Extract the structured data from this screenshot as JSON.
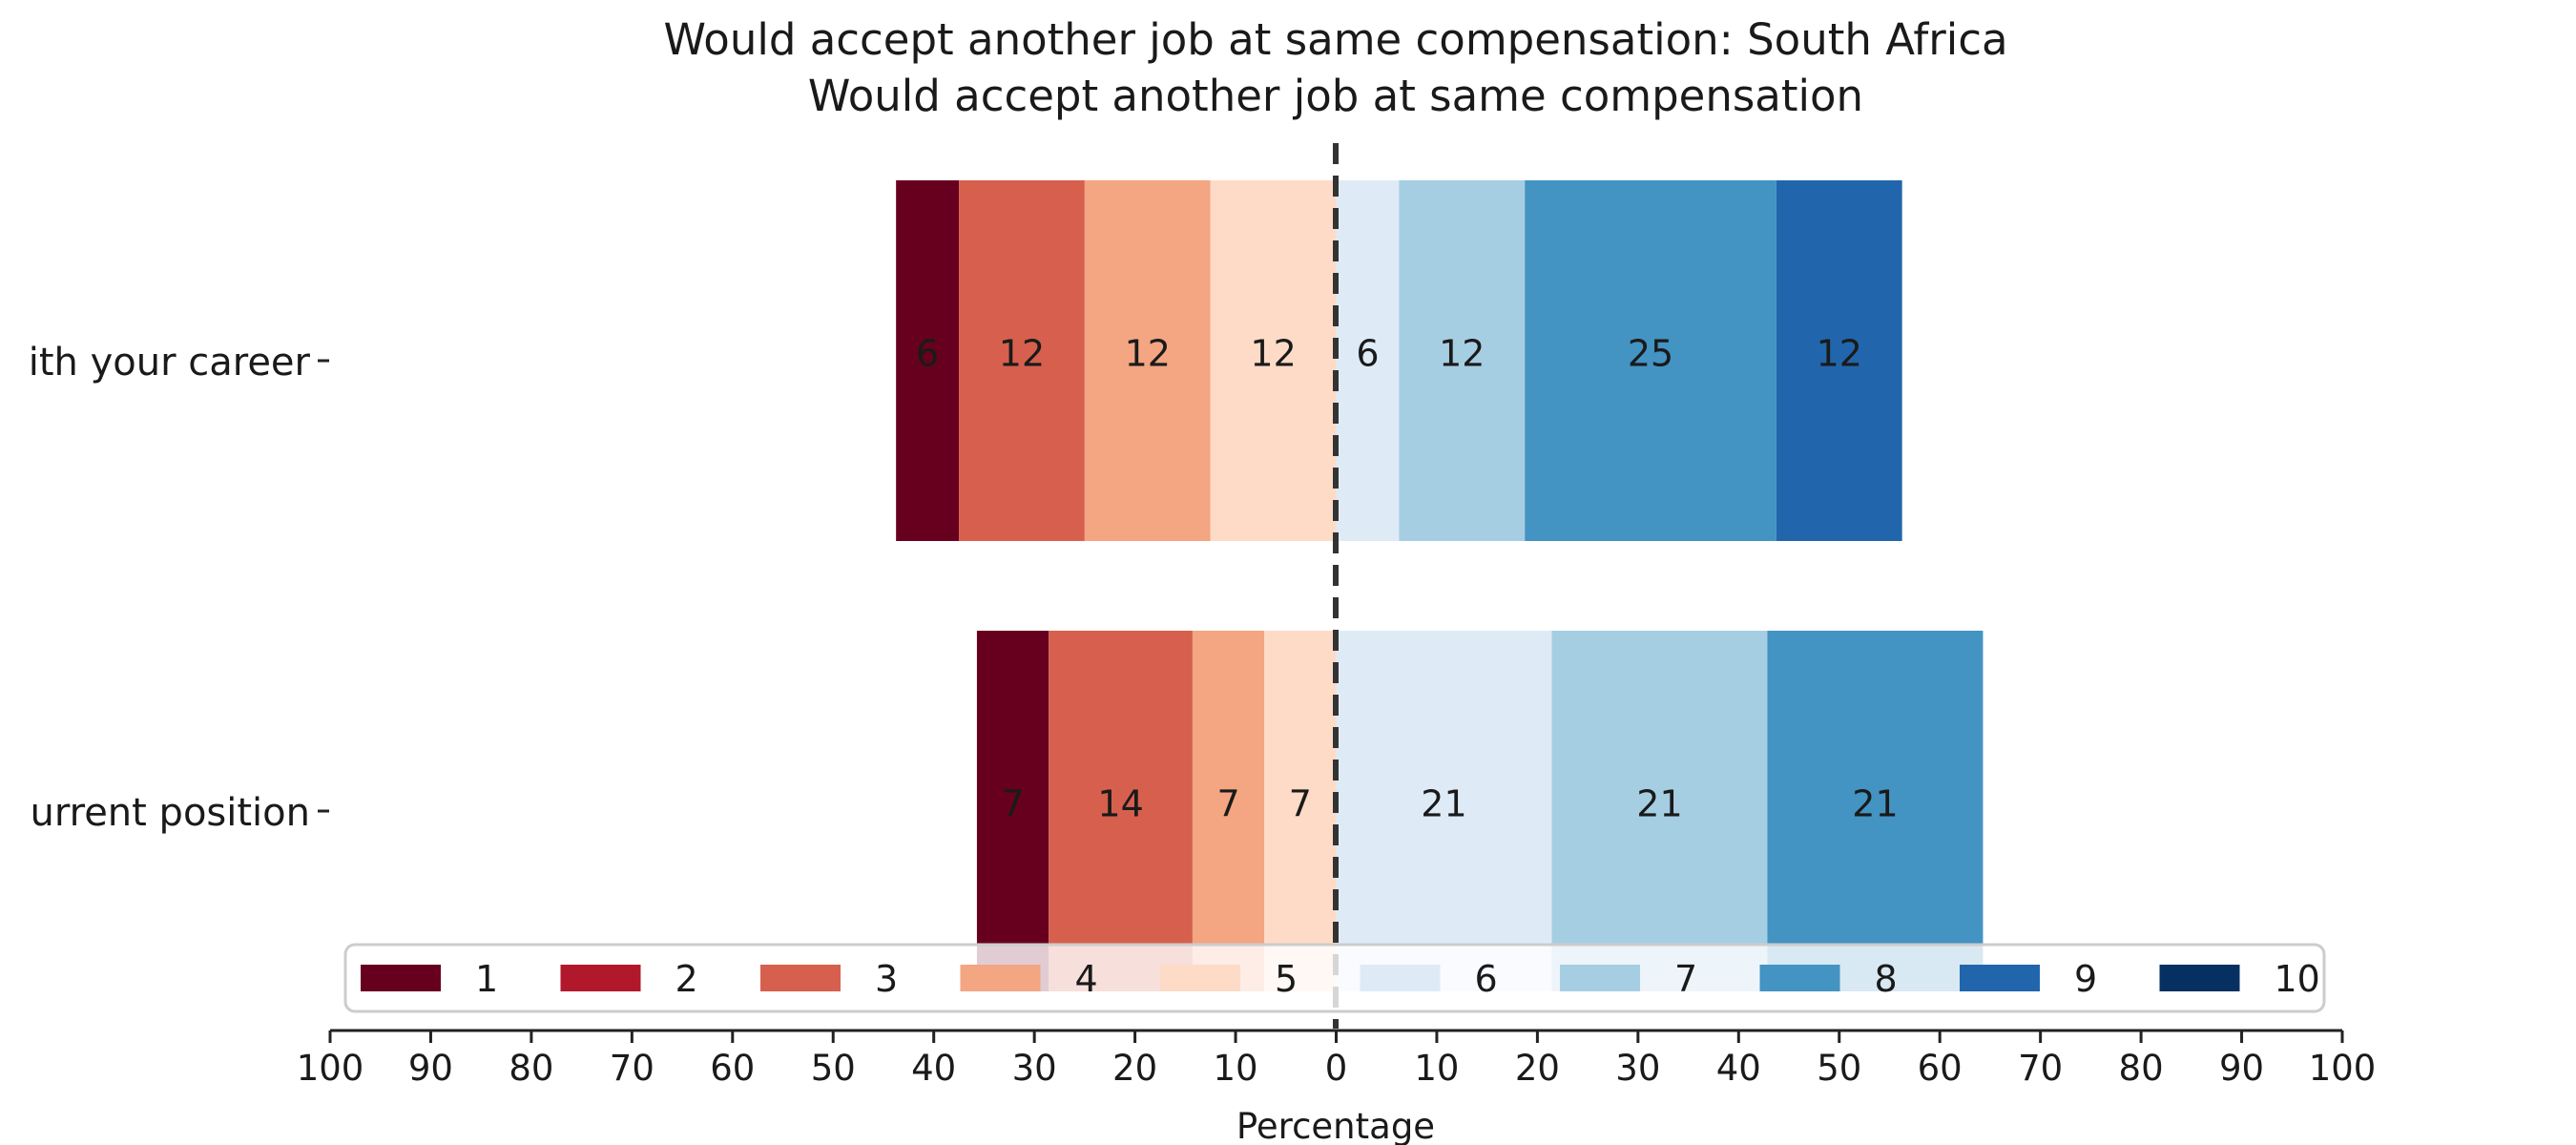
{
  "chart_data": {
    "type": "bar",
    "orientation": "horizontal",
    "stacking": "diverging",
    "title": "Would accept another job at same compensation: South Africa",
    "subtitle": "Would accept another job at same compensation",
    "xlabel": "Percentage",
    "xlim": [
      -100,
      100
    ],
    "xticks": [
      -100,
      -90,
      -80,
      -70,
      -60,
      -50,
      -40,
      -30,
      -20,
      -10,
      0,
      10,
      20,
      30,
      40,
      50,
      60,
      70,
      80,
      90,
      100
    ],
    "xtick_labels": [
      "100",
      "90",
      "80",
      "70",
      "60",
      "50",
      "40",
      "30",
      "20",
      "10",
      "0",
      "10",
      "20",
      "30",
      "40",
      "50",
      "60",
      "70",
      "80",
      "90",
      "100"
    ],
    "categories": [
      "ith your career",
      "urrent position"
    ],
    "legend_position": "bottom",
    "series": [
      {
        "name": "1",
        "color": "#67001f",
        "values": [
          6.25,
          7.14
        ]
      },
      {
        "name": "2",
        "color": "#b2182b",
        "values": [
          0,
          0
        ]
      },
      {
        "name": "3",
        "color": "#d6604d",
        "values": [
          12.5,
          14.29
        ]
      },
      {
        "name": "4",
        "color": "#f4a582",
        "values": [
          12.5,
          7.14
        ]
      },
      {
        "name": "5",
        "color": "#fddbc7",
        "values": [
          12.5,
          7.14
        ]
      },
      {
        "name": "6",
        "color": "#deebf7",
        "values": [
          6.25,
          21.43
        ]
      },
      {
        "name": "7",
        "color": "#a6cee3",
        "values": [
          12.5,
          21.43
        ]
      },
      {
        "name": "8",
        "color": "#4393c3",
        "values": [
          25,
          21.43
        ]
      },
      {
        "name": "9",
        "color": "#2166ac",
        "values": [
          12.5,
          0
        ]
      },
      {
        "name": "10",
        "color": "#053061",
        "values": [
          0,
          0
        ]
      }
    ],
    "neutral_split": "between 5 and 6",
    "data_labels": [
      [
        "6",
        "",
        "12",
        "12",
        "12",
        "6",
        "12",
        "25",
        "12",
        ""
      ],
      [
        "7",
        "",
        "14",
        "7",
        "7",
        "21",
        "21",
        "21",
        "",
        ""
      ]
    ]
  }
}
